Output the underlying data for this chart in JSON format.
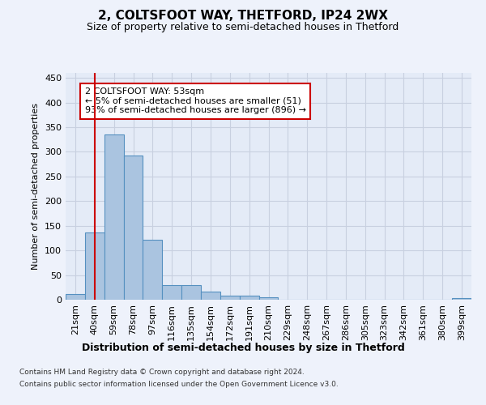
{
  "title": "2, COLTSFOOT WAY, THETFORD, IP24 2WX",
  "subtitle": "Size of property relative to semi-detached houses in Thetford",
  "xlabel": "Distribution of semi-detached houses by size in Thetford",
  "ylabel": "Number of semi-detached properties",
  "categories": [
    "21sqm",
    "40sqm",
    "59sqm",
    "78sqm",
    "97sqm",
    "116sqm",
    "135sqm",
    "154sqm",
    "172sqm",
    "191sqm",
    "210sqm",
    "229sqm",
    "248sqm",
    "267sqm",
    "286sqm",
    "305sqm",
    "323sqm",
    "342sqm",
    "361sqm",
    "380sqm",
    "399sqm"
  ],
  "values": [
    12,
    137,
    335,
    293,
    122,
    30,
    30,
    16,
    8,
    9,
    5,
    0,
    0,
    0,
    0,
    0,
    0,
    0,
    0,
    0,
    4
  ],
  "bar_color": "#aac4e0",
  "bar_edge_color": "#5590c0",
  "property_label": "2 COLTSFOOT WAY: 53sqm",
  "pct_smaller": 5,
  "count_smaller": 51,
  "pct_larger": 93,
  "count_larger": 896,
  "vline_color": "#cc0000",
  "vline_position": 1.0,
  "ylim": [
    0,
    460
  ],
  "yticks": [
    0,
    50,
    100,
    150,
    200,
    250,
    300,
    350,
    400,
    450
  ],
  "footer_line1": "Contains HM Land Registry data © Crown copyright and database right 2024.",
  "footer_line2": "Contains public sector information licensed under the Open Government Licence v3.0.",
  "background_color": "#eef2fb",
  "plot_background": "#e4ebf7",
  "grid_color": "#c8d0e0"
}
